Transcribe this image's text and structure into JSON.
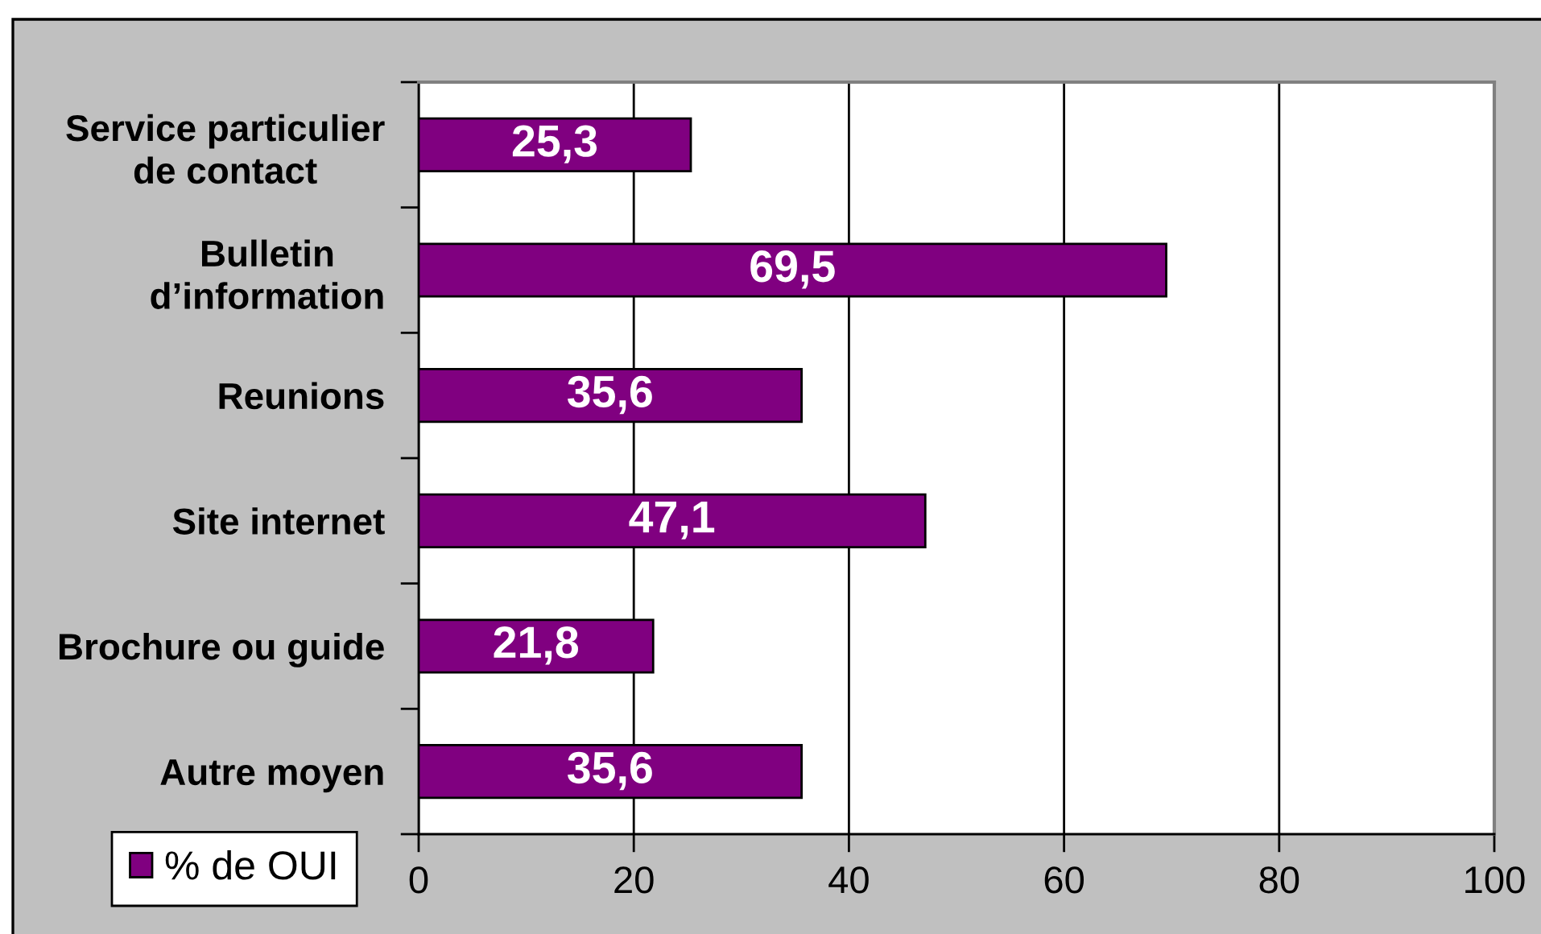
{
  "chart_data": {
    "type": "bar",
    "orientation": "horizontal",
    "categories": [
      "Service particulier de contact",
      "Bulletin d’information",
      "Reunions",
      "Site internet",
      "Brochure ou guide",
      "Autre moyen"
    ],
    "series": [
      {
        "name": "% de OUI",
        "color": "#800080",
        "values": [
          25.3,
          69.5,
          35.6,
          47.1,
          21.8,
          35.6
        ],
        "value_labels": [
          "25,3",
          "69,5",
          "35,6",
          "47,1",
          "21,8",
          "35,6"
        ]
      }
    ],
    "xlim": [
      0,
      100
    ],
    "xticks": [
      0,
      20,
      40,
      60,
      80,
      100
    ],
    "grid": "x",
    "legend": "bottom left"
  }
}
